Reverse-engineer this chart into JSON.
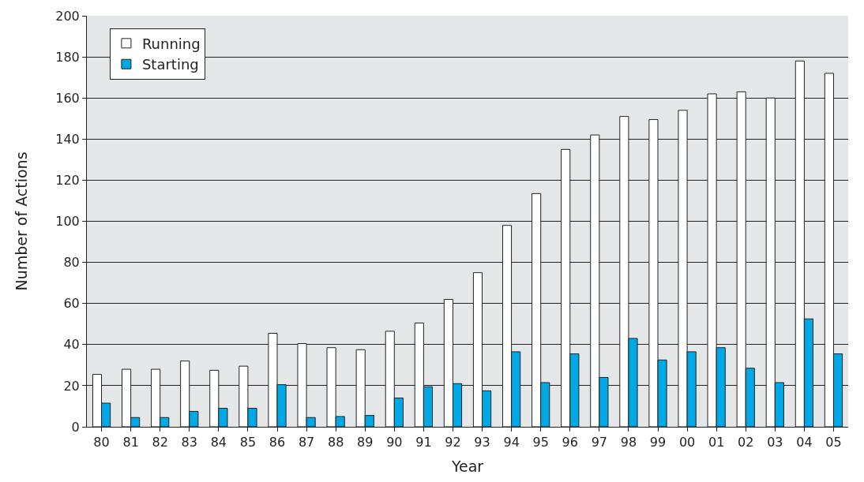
{
  "chart_data": {
    "type": "bar",
    "xlabel": "Year",
    "ylabel": "Number of Actions",
    "categories": [
      "80",
      "81",
      "82",
      "83",
      "84",
      "85",
      "86",
      "87",
      "88",
      "89",
      "90",
      "91",
      "92",
      "93",
      "94",
      "95",
      "96",
      "97",
      "98",
      "99",
      "00",
      "01",
      "02",
      "03",
      "04",
      "05"
    ],
    "series": [
      {
        "name": "Running",
        "color": "#ffffff",
        "values": [
          25.5,
          28,
          28,
          32,
          27.5,
          29.5,
          45.5,
          40.5,
          38.5,
          37.5,
          46.5,
          50.5,
          62,
          75,
          98,
          113.5,
          135,
          142,
          151,
          149.5,
          154,
          162,
          163,
          160,
          178,
          172
        ]
      },
      {
        "name": "Starting",
        "color": "#00a9e6",
        "values": [
          11.5,
          4.5,
          4.5,
          7.5,
          9,
          9,
          20.5,
          4.5,
          5,
          5.5,
          14,
          19.5,
          21,
          17.5,
          36.5,
          21.5,
          35.5,
          24,
          43,
          32.5,
          36.5,
          38.5,
          28.5,
          21.5,
          52.5,
          35.5
        ]
      }
    ],
    "ylim": [
      0,
      200
    ],
    "yticks": [
      0,
      20,
      40,
      60,
      80,
      100,
      120,
      140,
      160,
      180,
      200
    ],
    "grid": "y",
    "legend": "top left"
  }
}
